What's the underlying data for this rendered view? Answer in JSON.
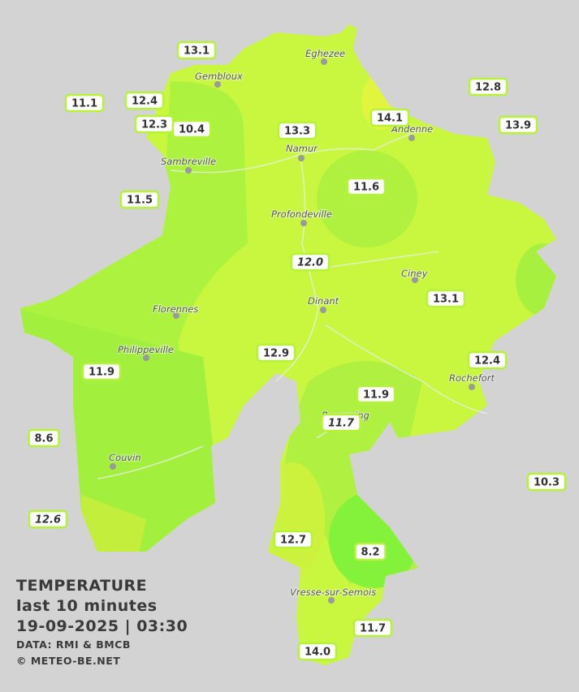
{
  "caption": {
    "title": "TEMPERATURE",
    "period": "last 10 minutes",
    "datetime": "19-09-2025  |  03:30",
    "source": "DATA: RMI & BMCB",
    "copyright": "© METEO-BE.NET"
  },
  "cities": [
    "Gembloux",
    "Eghezee",
    "Andenne",
    "Namur",
    "Sambreville",
    "Profondeville",
    "Ciney",
    "Dinant",
    "Florennes",
    "Philippeville",
    "Rochefort",
    "Beauraing",
    "Couvin",
    "Vresse-sur-Semois"
  ],
  "stations": [
    "13.1",
    "11.1",
    "12.4",
    "12.3",
    "10.4",
    "13.3",
    "14.1",
    "12.8",
    "13.9",
    "11.6",
    "11.5",
    "12.0",
    "13.1",
    "12.9",
    "12.4",
    "11.9",
    "11.9",
    "11.7",
    "8.6",
    "10.3",
    "12.6",
    "12.7",
    "8.2",
    "11.7",
    "14.0"
  ]
}
